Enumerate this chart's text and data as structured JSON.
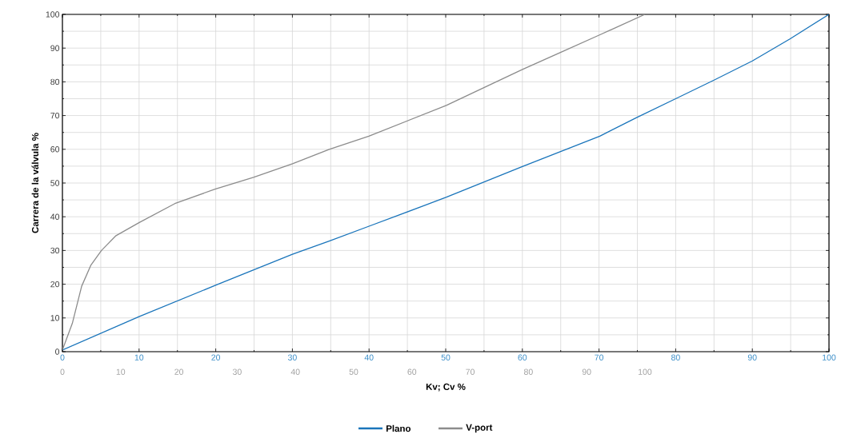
{
  "chart_data": {
    "type": "line",
    "xlabel": "Kv; Cv %",
    "ylabel": "Carrera de la válvula %",
    "xlim": [
      0,
      100
    ],
    "xticks": [
      0,
      10,
      20,
      30,
      40,
      50,
      60,
      70,
      80,
      90,
      100
    ],
    "x2lim": [
      0,
      131.6
    ],
    "x2ticks": [
      0,
      10,
      20,
      30,
      40,
      50,
      60,
      70,
      80,
      90,
      100
    ],
    "ylim": [
      0,
      100
    ],
    "yticks": [
      0,
      10,
      20,
      30,
      40,
      50,
      60,
      70,
      80,
      90,
      100
    ],
    "grid": true,
    "legend": "bottom",
    "series": [
      {
        "name": "Plano",
        "color": "#1a75bb",
        "x": [
          0,
          10,
          20.1,
          30,
          34.8,
          40,
          50.1,
          60,
          70.1,
          74.9,
          80,
          85,
          90,
          94.9,
          100
        ],
        "values": [
          0.5,
          10.4,
          19.8,
          28.9,
          32.8,
          37.2,
          45.8,
          54.9,
          63.9,
          69.4,
          75,
          80.5,
          86.2,
          92.7,
          100
        ]
      },
      {
        "name": "V-port",
        "color": "#8c8c8c",
        "axis": "x2",
        "x": [
          0,
          1.7,
          3.3,
          4.9,
          6.7,
          9.2,
          13.2,
          19.3,
          26.2,
          32.8,
          39.5,
          45.8,
          52.6,
          65.9,
          78.9,
          85.5,
          92.2,
          100
        ],
        "values": [
          0.5,
          8.4,
          19.4,
          25.7,
          30,
          34.4,
          38.3,
          43.9,
          48.2,
          51.7,
          55.7,
          60,
          63.9,
          73,
          83.6,
          88.7,
          93.9,
          100
        ]
      }
    ]
  }
}
